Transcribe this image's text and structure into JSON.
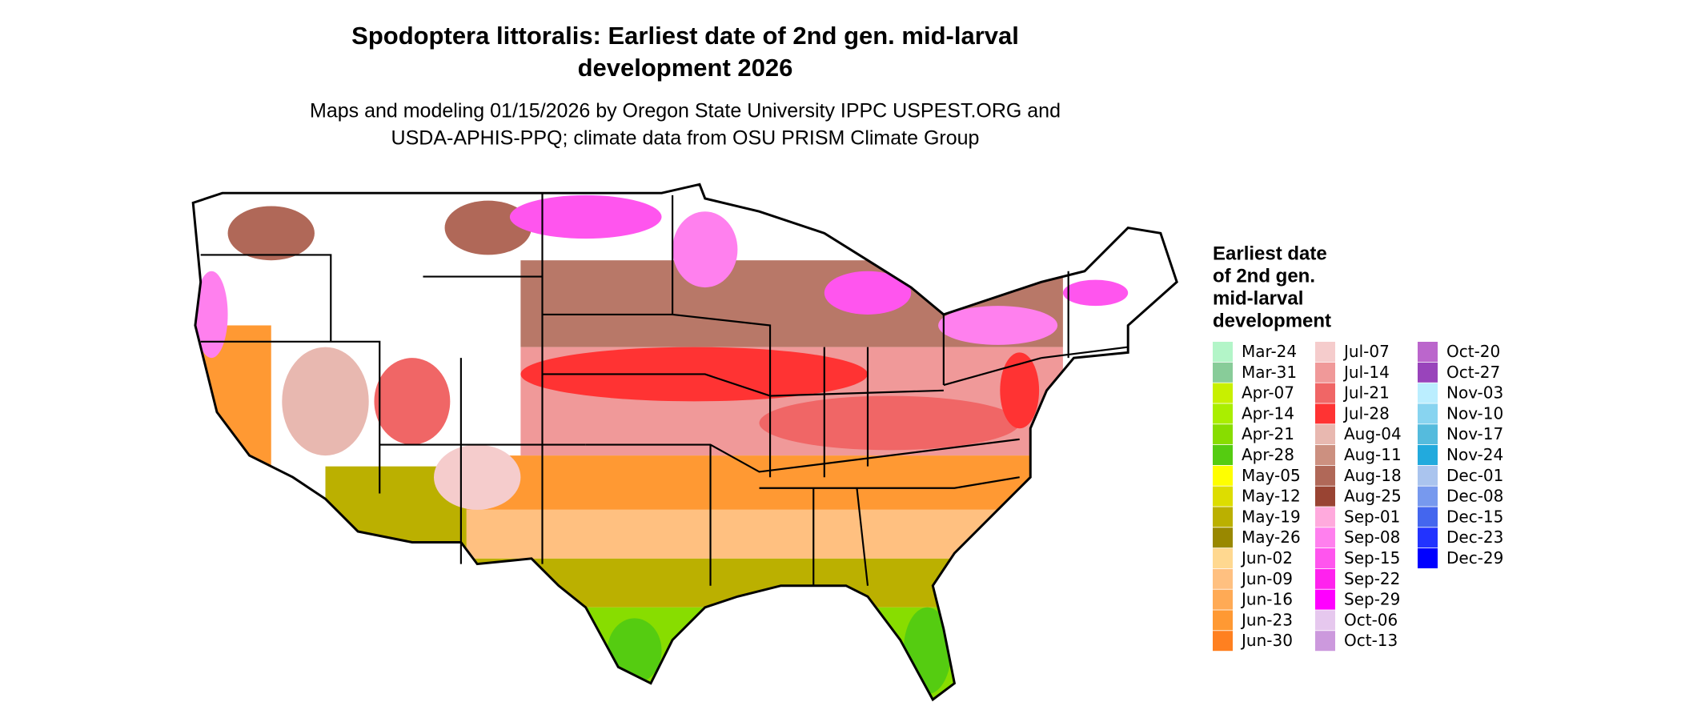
{
  "map": {
    "title_lines": [
      "Spodoptera littoralis: Earliest date of 2nd gen. mid-larval",
      "development 2026"
    ],
    "subtitle_lines": [
      "Maps and modeling 01/15/2026 by Oregon State University IPPC USPEST.ORG and",
      "USDA-APHIS-PPQ; climate data from OSU PRISM Climate Group"
    ],
    "legend": {
      "title_lines": [
        "Earliest date",
        "of 2nd gen.",
        "mid-larval",
        "development"
      ],
      "items": [
        {
          "label": "Mar-24",
          "color": "#b3f5c8"
        },
        {
          "label": "Mar-31",
          "color": "#88cc99"
        },
        {
          "label": "Apr-07",
          "color": "#c8f000"
        },
        {
          "label": "Apr-14",
          "color": "#aaee00"
        },
        {
          "label": "Apr-21",
          "color": "#88dd00"
        },
        {
          "label": "Apr-28",
          "color": "#55cc11"
        },
        {
          "label": "May-05",
          "color": "#ffff00"
        },
        {
          "label": "May-12",
          "color": "#dddd00"
        },
        {
          "label": "May-19",
          "color": "#bbb000"
        },
        {
          "label": "May-26",
          "color": "#998800"
        },
        {
          "label": "Jun-02",
          "color": "#ffd890"
        },
        {
          "label": "Jun-09",
          "color": "#ffc080"
        },
        {
          "label": "Jun-16",
          "color": "#ffaa55"
        },
        {
          "label": "Jun-23",
          "color": "#ff9933"
        },
        {
          "label": "Jun-30",
          "color": "#ff8020"
        },
        {
          "label": "Jul-07",
          "color": "#f5cccc"
        },
        {
          "label": "Jul-14",
          "color": "#f09999"
        },
        {
          "label": "Jul-21",
          "color": "#f06666"
        },
        {
          "label": "Jul-28",
          "color": "#ff3333"
        },
        {
          "label": "Aug-04",
          "color": "#e8b8b0"
        },
        {
          "label": "Aug-11",
          "color": "#cc9080"
        },
        {
          "label": "Aug-18",
          "color": "#b06858"
        },
        {
          "label": "Aug-25",
          "color": "#994433"
        },
        {
          "label": "Sep-01",
          "color": "#ffaadd"
        },
        {
          "label": "Sep-08",
          "color": "#ff80ee"
        },
        {
          "label": "Sep-15",
          "color": "#ff55ee"
        },
        {
          "label": "Sep-22",
          "color": "#ff22ee"
        },
        {
          "label": "Sep-29",
          "color": "#ff00ff"
        },
        {
          "label": "Oct-06",
          "color": "#e6c8ee"
        },
        {
          "label": "Oct-13",
          "color": "#cc99dd"
        },
        {
          "label": "Oct-20",
          "color": "#bb66cc"
        },
        {
          "label": "Oct-27",
          "color": "#9944bb"
        },
        {
          "label": "Nov-03",
          "color": "#bbeeff"
        },
        {
          "label": "Nov-10",
          "color": "#88d4f0"
        },
        {
          "label": "Nov-17",
          "color": "#55bbdd"
        },
        {
          "label": "Nov-24",
          "color": "#22aadd"
        },
        {
          "label": "Dec-01",
          "color": "#aac4ee"
        },
        {
          "label": "Dec-08",
          "color": "#7799ee"
        },
        {
          "label": "Dec-15",
          "color": "#4466ee"
        },
        {
          "label": "Dec-23",
          "color": "#2233ff"
        },
        {
          "label": "Dec-29",
          "color": "#0000ff"
        }
      ]
    }
  }
}
